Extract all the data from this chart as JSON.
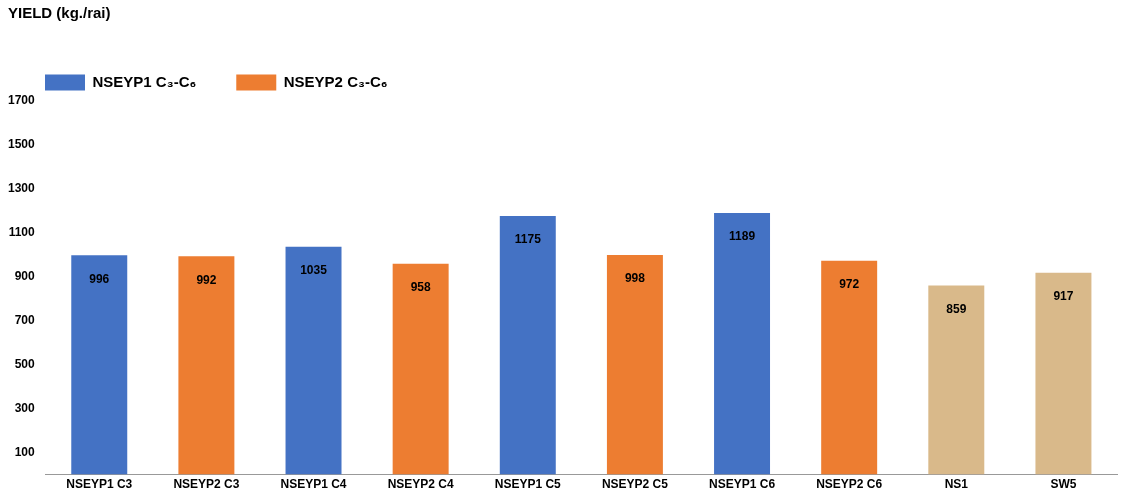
{
  "chart_data": {
    "type": "bar",
    "annotations": [
      "YIELD (kg./rai)"
    ],
    "categories": [
      "NSEYP1 C3",
      "NSEYP2 C3",
      "NSEYP1 C4",
      "NSEYP2 C4",
      "NSEYP1 C5",
      "NSEYP2 C5",
      "NSEYP1 C6",
      "NSEYP2 C6",
      "NS1",
      "SW5"
    ],
    "series": [
      {
        "name": "NSEYP1 C₃-C₆",
        "color": "#4472c4",
        "values": [
          996,
          null,
          1035,
          null,
          1175,
          null,
          1189,
          null,
          null,
          null
        ]
      },
      {
        "name": "NSEYP2 C₃-C₆",
        "color": "#ed7d31",
        "values": [
          null,
          992,
          null,
          958,
          null,
          998,
          null,
          972,
          null,
          null
        ]
      },
      {
        "color": "#d9b98a",
        "values": [
          null,
          null,
          null,
          null,
          null,
          null,
          null,
          null,
          859,
          917
        ]
      }
    ],
    "ylim": [
      0,
      1700
    ],
    "yticks": [
      100,
      300,
      500,
      700,
      900,
      1100,
      1300,
      1500,
      1700
    ],
    "grid": false,
    "legend": "top left",
    "data_labels": true
  }
}
